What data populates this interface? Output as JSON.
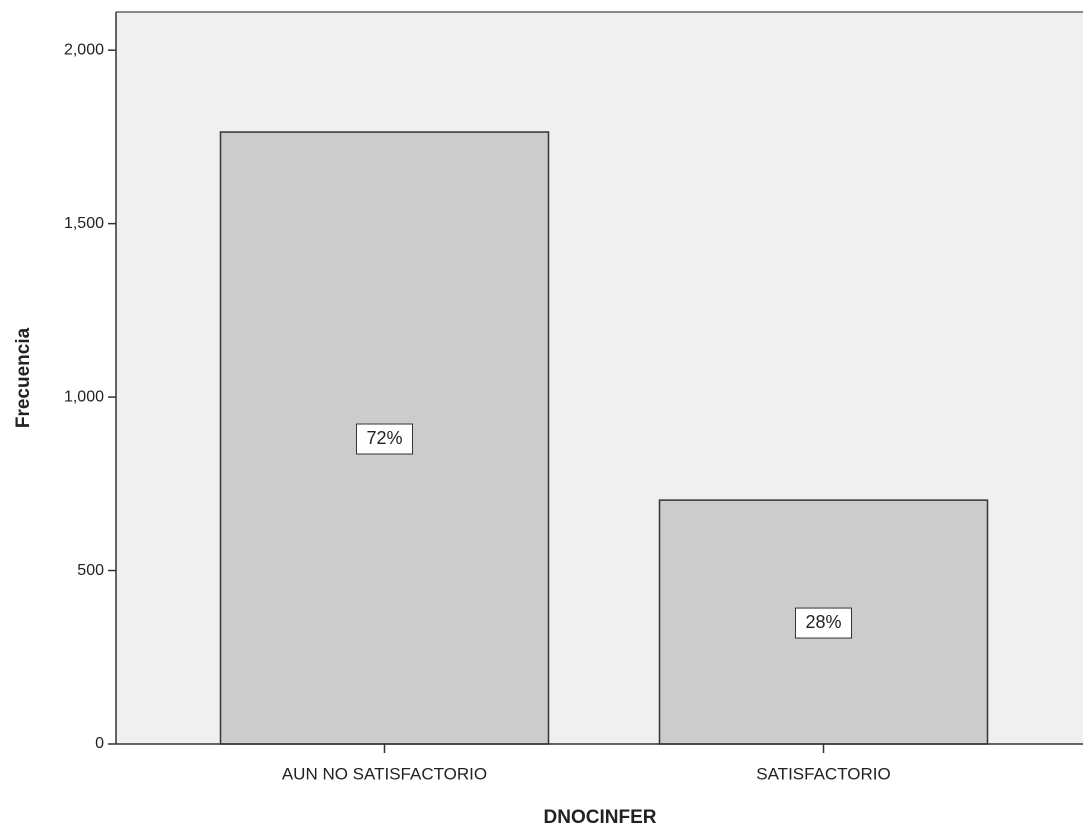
{
  "chart_data": {
    "type": "bar",
    "x_label": "DNOCINFER",
    "y_label": "Frecuencia",
    "categories": [
      "AUN NO SATISFACTORIO",
      "SATISFACTORIO"
    ],
    "values": [
      1764,
      703
    ],
    "percent_labels": [
      "72%",
      "28%"
    ],
    "color": "#cccccc",
    "ylim": [
      0,
      2110
    ],
    "yticks": [
      0,
      500,
      {
        "value": 1000,
        "label": "1,000"
      },
      {
        "value": 1500,
        "label": "1,500"
      },
      {
        "value": 2000,
        "label": "2,000"
      }
    ]
  }
}
